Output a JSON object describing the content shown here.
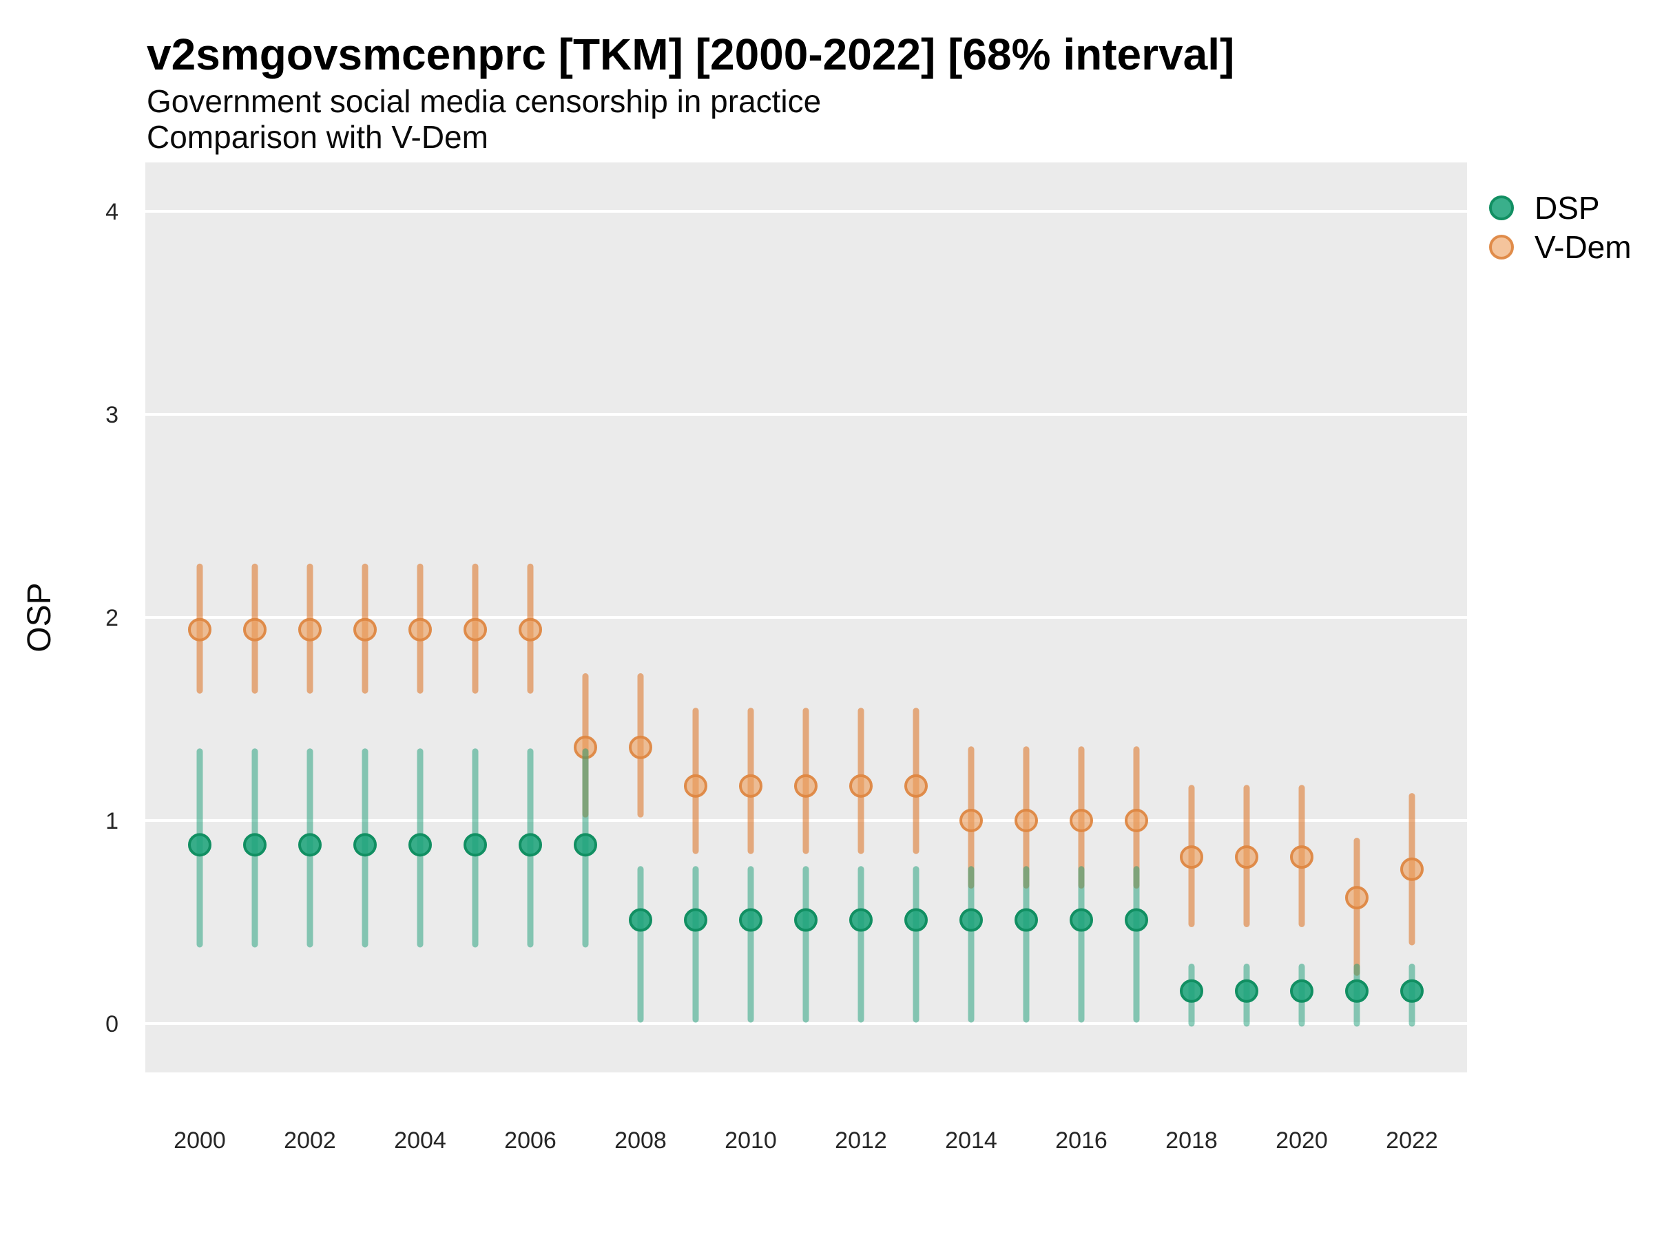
{
  "chart_data": {
    "type": "scatter",
    "title": "v2smgovsmcenprc [TKM] [2000-2022] [68% interval]",
    "subtitle": "Government social media censorship in practice",
    "subtitle2": "Comparison with V-Dem",
    "ylabel": "OSP",
    "xlabel": "",
    "interval_label": "68% interval",
    "country_code": "TKM",
    "variable": "v2smgovsmcenprc",
    "ylim": [
      -0.25,
      4.25
    ],
    "yticks": [
      0,
      1,
      2,
      3,
      4
    ],
    "xticks": [
      2000,
      2002,
      2004,
      2006,
      2008,
      2010,
      2012,
      2014,
      2016,
      2018,
      2020,
      2022
    ],
    "grid": "horizontal-major-only",
    "legend_position": "top-right",
    "x": [
      2000,
      2001,
      2002,
      2003,
      2004,
      2005,
      2006,
      2007,
      2008,
      2009,
      2010,
      2011,
      2012,
      2013,
      2014,
      2015,
      2016,
      2017,
      2018,
      2019,
      2020,
      2021,
      2022
    ],
    "series": [
      {
        "name": "DSP",
        "point_fill": "rgba(31,164,123,0.88)",
        "point_stroke": "rgba(17,143,98,1)",
        "stem_color": "rgba(27,158,119,0.5)",
        "values": [
          0.88,
          0.88,
          0.88,
          0.88,
          0.88,
          0.88,
          0.88,
          0.88,
          0.51,
          0.51,
          0.51,
          0.51,
          0.51,
          0.51,
          0.51,
          0.51,
          0.51,
          0.51,
          0.16,
          0.16,
          0.16,
          0.16,
          0.16
        ],
        "lower": [
          0.39,
          0.39,
          0.39,
          0.39,
          0.39,
          0.39,
          0.39,
          0.39,
          0.02,
          0.02,
          0.02,
          0.02,
          0.02,
          0.02,
          0.02,
          0.02,
          0.02,
          0.02,
          0.0,
          0.0,
          0.0,
          0.0,
          0.0
        ],
        "upper": [
          1.34,
          1.34,
          1.34,
          1.34,
          1.34,
          1.34,
          1.34,
          1.34,
          0.76,
          0.76,
          0.76,
          0.76,
          0.76,
          0.76,
          0.76,
          0.76,
          0.76,
          0.76,
          0.28,
          0.28,
          0.28,
          0.28,
          0.28
        ]
      },
      {
        "name": "V-Dem",
        "point_fill": "rgba(238,160,96,0.62)",
        "point_stroke": "rgba(222,135,66,0.95)",
        "stem_color": "rgba(221,123,50,0.6)",
        "values": [
          1.94,
          1.94,
          1.94,
          1.94,
          1.94,
          1.94,
          1.94,
          1.36,
          1.36,
          1.17,
          1.17,
          1.17,
          1.17,
          1.17,
          1.0,
          1.0,
          1.0,
          1.0,
          0.82,
          0.82,
          0.82,
          0.62,
          0.76
        ],
        "lower": [
          1.64,
          1.64,
          1.64,
          1.64,
          1.64,
          1.64,
          1.64,
          1.03,
          1.03,
          0.85,
          0.85,
          0.85,
          0.85,
          0.85,
          0.68,
          0.68,
          0.68,
          0.68,
          0.49,
          0.49,
          0.49,
          0.25,
          0.4
        ],
        "upper": [
          2.25,
          2.25,
          2.25,
          2.25,
          2.25,
          2.25,
          2.25,
          1.71,
          1.71,
          1.54,
          1.54,
          1.54,
          1.54,
          1.54,
          1.35,
          1.35,
          1.35,
          1.35,
          1.16,
          1.16,
          1.16,
          0.9,
          1.12
        ]
      }
    ]
  },
  "panel": {
    "bg_color": "#ebebeb",
    "grid_color": "#ffffff",
    "axis_text_color": "#262626",
    "title_color": "#000000"
  }
}
